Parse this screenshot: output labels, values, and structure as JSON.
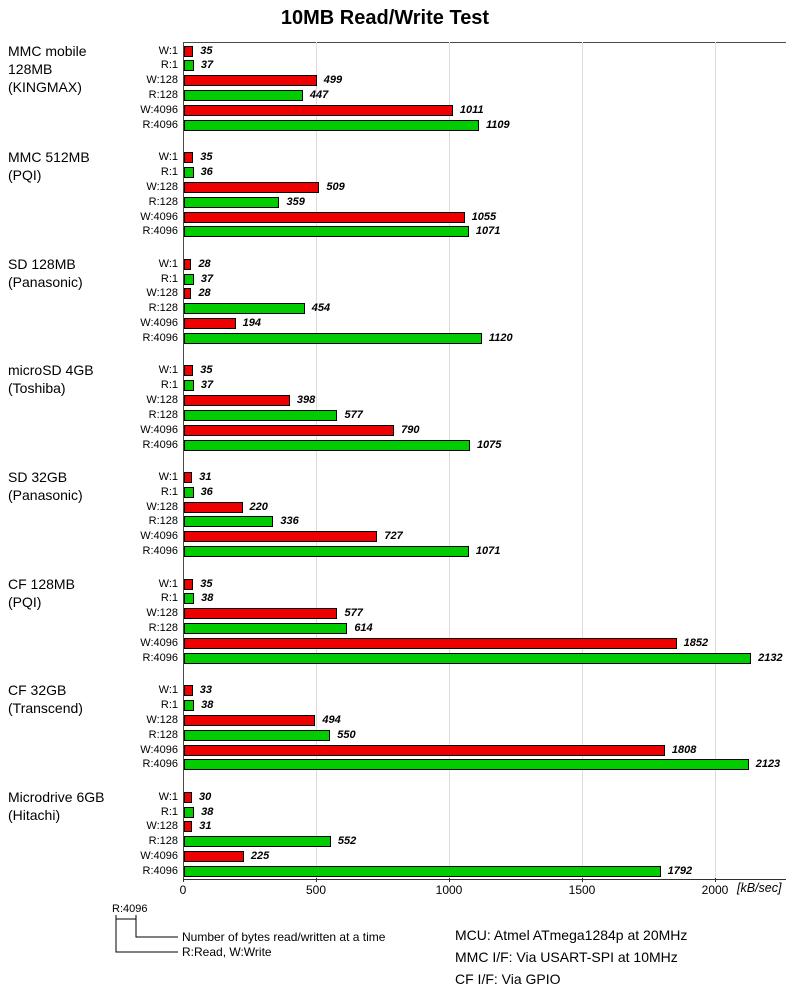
{
  "title": "10MB Read/Write Test",
  "axis": {
    "tick_values": [
      0,
      500,
      1000,
      1500,
      2000
    ],
    "unit_label": "[kB/sec]",
    "max": 2263
  },
  "colors": {
    "write": "#ee0000",
    "read": "#00cc00",
    "bar_border": "#000000",
    "grid": "#dcdcdc"
  },
  "chart_data": {
    "type": "bar",
    "orientation": "horizontal",
    "title": "10MB Read/Write Test",
    "xlabel": "[kB/sec]",
    "xlim": [
      0,
      2263
    ],
    "grid": true,
    "row_labels": [
      "W:1",
      "R:1",
      "W:128",
      "R:128",
      "W:4096",
      "R:4096"
    ],
    "row_kinds": [
      "write",
      "read",
      "write",
      "read",
      "write",
      "read"
    ],
    "groups": [
      {
        "label_lines": [
          "MMC mobile",
          "128MB",
          "(KINGMAX)"
        ],
        "values": [
          35,
          37,
          499,
          447,
          1011,
          1109
        ]
      },
      {
        "label_lines": [
          "MMC 512MB",
          "(PQI)"
        ],
        "values": [
          35,
          36,
          509,
          359,
          1055,
          1071
        ]
      },
      {
        "label_lines": [
          "SD 128MB",
          "(Panasonic)"
        ],
        "values": [
          28,
          37,
          28,
          454,
          194,
          1120
        ]
      },
      {
        "label_lines": [
          "microSD 4GB",
          "(Toshiba)"
        ],
        "values": [
          35,
          37,
          398,
          577,
          790,
          1075
        ]
      },
      {
        "label_lines": [
          "SD 32GB",
          "(Panasonic)"
        ],
        "values": [
          31,
          36,
          220,
          336,
          727,
          1071
        ]
      },
      {
        "label_lines": [
          "CF 128MB",
          "(PQI)"
        ],
        "values": [
          35,
          38,
          577,
          614,
          1852,
          2132
        ]
      },
      {
        "label_lines": [
          "CF 32GB",
          "(Transcend)"
        ],
        "values": [
          33,
          38,
          494,
          550,
          1808,
          2123
        ]
      },
      {
        "label_lines": [
          "Microdrive 6GB",
          "(Hitachi)"
        ],
        "values": [
          30,
          38,
          31,
          552,
          225,
          1792
        ]
      }
    ]
  },
  "legend": {
    "example_label": "R:4096",
    "note_bytes": "Number of bytes read/written at a time",
    "note_rw": "R:Read, W:Write"
  },
  "footer": {
    "lines": [
      "MCU: Atmel ATmega1284p at 20MHz",
      "MMC I/F: Via USART-SPI at 10MHz",
      "CF I/F: Via GPIO"
    ]
  }
}
